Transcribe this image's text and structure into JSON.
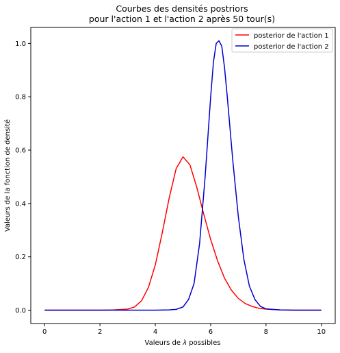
{
  "chart_data": {
    "type": "line",
    "title_line1": "Courbes des densités postriors",
    "title_line2": "pour l'action 1 et l'action 2 après 50 tour(s)",
    "xlabel_prefix": "Valeurs de ",
    "xlabel_symbol": "λ",
    "xlabel_suffix": " possibles",
    "ylabel": "Valeurs de la fonction de densité",
    "xlim": [
      -0.5,
      10.5
    ],
    "ylim": [
      -0.05,
      1.06
    ],
    "xticks": [
      "0",
      "2",
      "4",
      "6",
      "8",
      "10"
    ],
    "yticks": [
      "0.0",
      "0.2",
      "0.4",
      "0.6",
      "0.8",
      "1.0"
    ],
    "legend_position": "top-right",
    "grid": false,
    "series": [
      {
        "name": "posterior de l'action 1",
        "color": "#ff0000",
        "x": [
          0,
          1,
          2,
          2.5,
          3,
          3.25,
          3.5,
          3.75,
          4,
          4.25,
          4.5,
          4.75,
          5,
          5.25,
          5.5,
          5.75,
          6,
          6.25,
          6.5,
          6.75,
          7,
          7.25,
          7.5,
          7.75,
          8,
          8.5,
          9,
          10
        ],
        "y": [
          0,
          0,
          0,
          0.001,
          0.004,
          0.012,
          0.035,
          0.085,
          0.17,
          0.29,
          0.42,
          0.53,
          0.575,
          0.545,
          0.46,
          0.36,
          0.265,
          0.185,
          0.12,
          0.075,
          0.044,
          0.025,
          0.014,
          0.007,
          0.004,
          0.001,
          0,
          0
        ]
      },
      {
        "name": "posterior de l'action 2",
        "color": "#0000cc",
        "x": [
          0,
          1,
          2,
          3,
          4,
          4.5,
          4.75,
          5,
          5.2,
          5.4,
          5.6,
          5.8,
          6,
          6.1,
          6.2,
          6.3,
          6.4,
          6.5,
          6.6,
          6.8,
          7,
          7.2,
          7.4,
          7.6,
          7.8,
          8,
          8.5,
          9,
          10
        ],
        "y": [
          0,
          0,
          0,
          0,
          0,
          0.001,
          0.003,
          0.012,
          0.04,
          0.1,
          0.25,
          0.5,
          0.8,
          0.93,
          1.0,
          1.01,
          0.99,
          0.91,
          0.8,
          0.56,
          0.35,
          0.19,
          0.09,
          0.04,
          0.014,
          0.005,
          0.001,
          0,
          0
        ]
      }
    ]
  }
}
